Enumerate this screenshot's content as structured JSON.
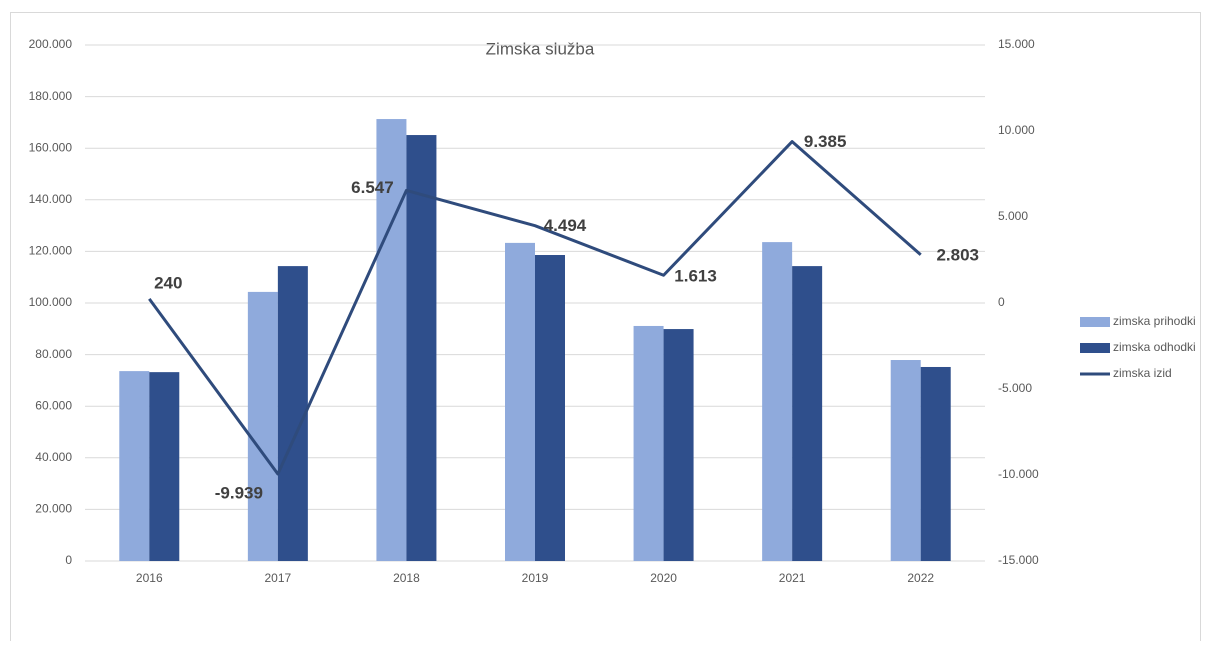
{
  "chart_data": {
    "type": "bar",
    "title": "Zimska služba",
    "categories": [
      "2016",
      "2017",
      "2018",
      "2019",
      "2020",
      "2021",
      "2022"
    ],
    "series": [
      {
        "name": "zimska prihodki",
        "color": "#8faadc",
        "values": [
          73600,
          104300,
          171300,
          123300,
          91100,
          123600,
          77900
        ]
      },
      {
        "name": "zimska odhodki",
        "color": "#2f4f8c",
        "values": [
          73200,
          114300,
          165100,
          118600,
          89900,
          114300,
          75200
        ]
      },
      {
        "name": "zimska izid",
        "color": "#2f4b7c",
        "type": "line",
        "axis": "y2",
        "values": [
          240,
          -9939,
          6547,
          4494,
          1613,
          9385,
          2803
        ],
        "value_labels": [
          "240",
          "-9.939",
          "6.547",
          "4.494",
          "1.613",
          "9.385",
          "2.803"
        ]
      }
    ],
    "ylim": [
      0,
      200000
    ],
    "yticks": [
      0,
      {
        "value": 20000,
        "label": "20.000"
      },
      {
        "value": 40000,
        "label": "40.000"
      },
      {
        "value": 60000,
        "label": "60.000"
      },
      {
        "value": 80000,
        "label": "80.000"
      },
      {
        "value": 100000,
        "label": "100.000"
      },
      {
        "value": 120000,
        "label": "120.000"
      },
      {
        "value": 140000,
        "label": "140.000"
      },
      {
        "value": 160000,
        "label": "160.000"
      },
      {
        "value": 180000,
        "label": "180.000"
      },
      {
        "value": 200000,
        "label": "200.000"
      }
    ],
    "y2lim": [
      -15000,
      15000
    ],
    "y2ticks": [
      {
        "value": -15000,
        "label": "-15.000"
      },
      {
        "value": -10000,
        "label": "-10.000"
      },
      {
        "value": -5000,
        "label": "-5.000"
      },
      0,
      {
        "value": 5000,
        "label": "5.000"
      },
      {
        "value": 10000,
        "label": "10.000"
      },
      {
        "value": 15000,
        "label": "15.000"
      }
    ],
    "grid": true,
    "legend": "right"
  }
}
